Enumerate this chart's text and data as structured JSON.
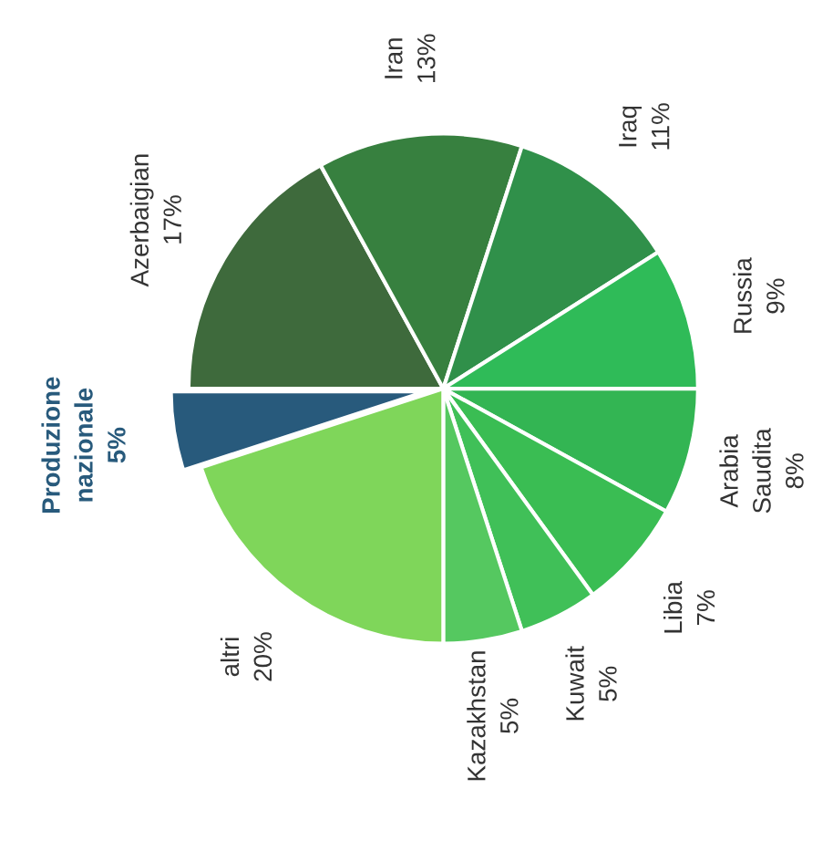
{
  "chart_data": {
    "type": "pie",
    "categories": [
      "Azerbaigian",
      "Iran",
      "Iraq",
      "Russia",
      "Arabia Saudita",
      "Libia",
      "Kuwait",
      "Kazakhstan",
      "altri",
      "Produzione nazionale"
    ],
    "values": [
      17,
      13,
      11,
      9,
      8,
      7,
      5,
      5,
      20,
      5
    ],
    "value_labels": [
      "17%",
      "13%",
      "11%",
      "9%",
      "8%",
      "7%",
      "5%",
      "5%",
      "20%",
      "5%"
    ],
    "colors": [
      "#3e6a3c",
      "#37803f",
      "#30904a",
      "#2fbb58",
      "#33b553",
      "#3abd53",
      "#40c058",
      "#55c860",
      "#7fd65a",
      "#285a7c"
    ]
  }
}
